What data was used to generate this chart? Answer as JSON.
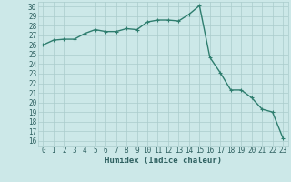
{
  "x": [
    0,
    1,
    2,
    3,
    4,
    5,
    6,
    7,
    8,
    9,
    10,
    11,
    12,
    13,
    14,
    15,
    16,
    17,
    18,
    19,
    20,
    21,
    22,
    23
  ],
  "y": [
    26.0,
    26.5,
    26.6,
    26.6,
    27.2,
    27.6,
    27.4,
    27.4,
    27.7,
    27.6,
    28.4,
    28.6,
    28.6,
    28.5,
    29.2,
    30.1,
    24.7,
    23.1,
    21.3,
    21.3,
    20.5,
    19.3,
    19.0,
    16.3
  ],
  "line_color": "#2e7d6e",
  "marker": "+",
  "marker_size": 3,
  "linewidth": 1.0,
  "xlabel": "Humidex (Indice chaleur)",
  "xlim": [
    -0.5,
    23.5
  ],
  "ylim": [
    15.5,
    30.5
  ],
  "yticks": [
    16,
    17,
    18,
    19,
    20,
    21,
    22,
    23,
    24,
    25,
    26,
    27,
    28,
    29,
    30
  ],
  "xticks": [
    0,
    1,
    2,
    3,
    4,
    5,
    6,
    7,
    8,
    9,
    10,
    11,
    12,
    13,
    14,
    15,
    16,
    17,
    18,
    19,
    20,
    21,
    22,
    23
  ],
  "bg_color": "#cce8e8",
  "grid_color": "#aacccc",
  "line_border_color": "#336666",
  "xlabel_fontsize": 6.5,
  "tick_fontsize": 5.5,
  "label_color": "#2e6060"
}
